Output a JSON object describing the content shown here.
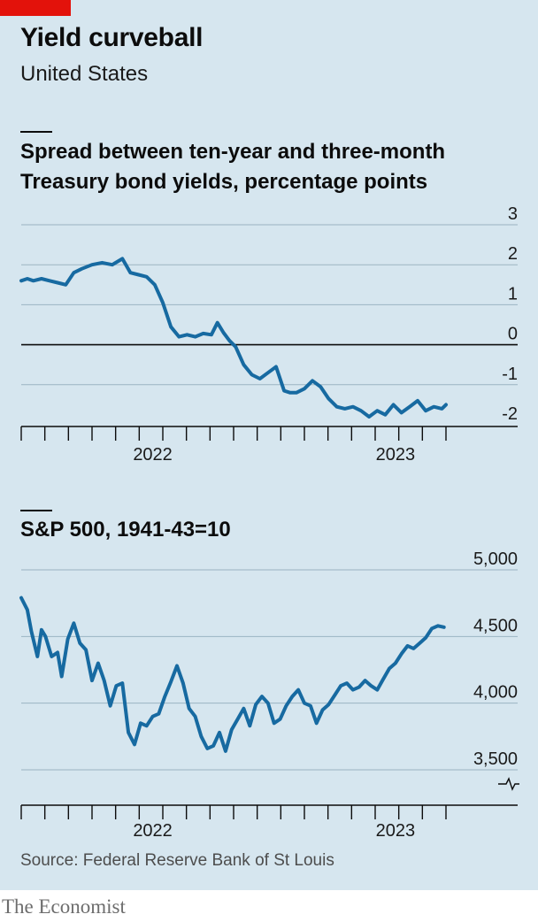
{
  "header": {
    "title": "Yield curveball",
    "subtitle": "United States"
  },
  "chart_data": [
    {
      "type": "line",
      "title": "Spread between ten-year and three-month Treasury bond yields, percentage points",
      "xlabel": "",
      "ylabel": "percentage points",
      "ylim": [
        -2,
        3
      ],
      "yticks": [
        3,
        2,
        1,
        0,
        -1,
        -2
      ],
      "ytick_labels": [
        "3",
        "2",
        "1",
        "0",
        "-1",
        "-2"
      ],
      "x_month_ticks": 19,
      "x_labels": [
        {
          "label": "2022",
          "month": 6.5
        },
        {
          "label": "2023",
          "month": 18.5
        }
      ],
      "x_range_months": [
        0,
        21
      ],
      "series": [
        {
          "name": "10y-3m spread",
          "color": "#176aa1",
          "x": [
            0.0,
            0.3,
            0.6,
            1.0,
            1.4,
            1.8,
            2.2,
            2.6,
            3.0,
            3.5,
            4.0,
            4.5,
            5.0,
            5.4,
            5.8,
            6.2,
            6.6,
            7.0,
            7.4,
            7.8,
            8.2,
            8.6,
            9.0,
            9.4,
            9.7,
            10.0,
            10.3,
            10.6,
            11.0,
            11.4,
            11.8,
            12.2,
            12.6,
            13.0,
            13.3,
            13.6,
            14.0,
            14.4,
            14.8,
            15.2,
            15.6,
            16.0,
            16.4,
            16.8,
            17.2,
            17.6,
            18.0,
            18.4,
            18.8,
            19.2,
            19.6,
            20.0,
            20.4,
            20.8,
            21.0
          ],
          "y": [
            1.6,
            1.65,
            1.6,
            1.65,
            1.6,
            1.55,
            1.5,
            1.8,
            1.9,
            2.0,
            2.05,
            2.0,
            2.15,
            1.8,
            1.75,
            1.7,
            1.5,
            1.05,
            0.45,
            0.2,
            0.25,
            0.2,
            0.28,
            0.25,
            0.55,
            0.3,
            0.1,
            -0.05,
            -0.5,
            -0.75,
            -0.85,
            -0.7,
            -0.55,
            -1.15,
            -1.2,
            -1.2,
            -1.1,
            -0.9,
            -1.05,
            -1.35,
            -1.55,
            -1.6,
            -1.55,
            -1.65,
            -1.8,
            -1.65,
            -1.75,
            -1.5,
            -1.7,
            -1.55,
            -1.4,
            -1.65,
            -1.55,
            -1.6,
            -1.5
          ]
        }
      ]
    },
    {
      "type": "line",
      "title": "S&P 500, 1941-43=10",
      "xlabel": "",
      "ylabel": "",
      "ylim": [
        3500,
        5000
      ],
      "yticks": [
        5000,
        4500,
        4000,
        3500
      ],
      "ytick_labels": [
        "5,000",
        "4,500",
        "4,000",
        "3,500"
      ],
      "axis_break": true,
      "x_month_ticks": 19,
      "x_labels": [
        {
          "label": "2022",
          "month": 6.5
        },
        {
          "label": "2023",
          "month": 18.5
        }
      ],
      "x_range_months": [
        0,
        21
      ],
      "series": [
        {
          "name": "S&P 500",
          "color": "#176aa1",
          "x": [
            0.0,
            0.3,
            0.5,
            0.8,
            1.0,
            1.2,
            1.5,
            1.8,
            2.0,
            2.3,
            2.6,
            2.9,
            3.2,
            3.5,
            3.8,
            4.1,
            4.4,
            4.7,
            5.0,
            5.3,
            5.6,
            5.9,
            6.2,
            6.5,
            6.8,
            7.1,
            7.4,
            7.7,
            8.0,
            8.3,
            8.6,
            8.9,
            9.2,
            9.5,
            9.8,
            10.1,
            10.4,
            10.7,
            11.0,
            11.3,
            11.6,
            11.9,
            12.2,
            12.5,
            12.8,
            13.1,
            13.4,
            13.7,
            14.0,
            14.3,
            14.6,
            14.9,
            15.2,
            15.5,
            15.8,
            16.1,
            16.4,
            16.7,
            17.0,
            17.3,
            17.6,
            17.9,
            18.2,
            18.5,
            18.8,
            19.1,
            19.4,
            19.7,
            20.0,
            20.3,
            20.6,
            20.9
          ],
          "y": [
            4790,
            4700,
            4540,
            4350,
            4550,
            4500,
            4350,
            4380,
            4200,
            4480,
            4600,
            4450,
            4400,
            4170,
            4300,
            4170,
            3980,
            4130,
            4150,
            3780,
            3690,
            3850,
            3830,
            3900,
            3920,
            4050,
            4160,
            4280,
            4150,
            3960,
            3900,
            3750,
            3660,
            3680,
            3780,
            3640,
            3800,
            3880,
            3960,
            3830,
            3990,
            4050,
            4000,
            3850,
            3880,
            3980,
            4050,
            4100,
            4000,
            3980,
            3850,
            3950,
            3990,
            4060,
            4130,
            4150,
            4100,
            4120,
            4170,
            4130,
            4100,
            4180,
            4260,
            4300,
            4370,
            4430,
            4410,
            4450,
            4490,
            4560,
            4580,
            4570
          ]
        }
      ]
    }
  ],
  "footer": {
    "source": "Source: Federal Reserve Bank of St Louis",
    "brand": "The Economist"
  }
}
